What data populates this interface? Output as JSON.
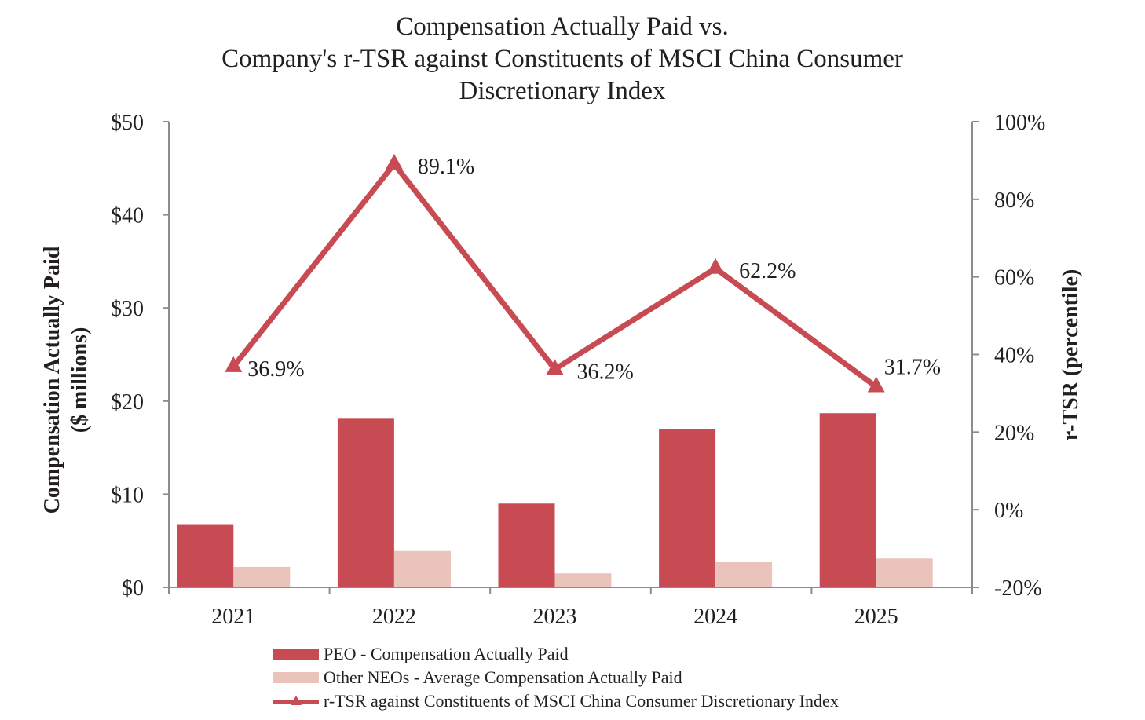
{
  "chart_data": {
    "type": "bar",
    "title": [
      "Compensation Actually Paid vs.",
      "Company's r-TSR against Constituents of MSCI China Consumer",
      "Discretionary Index"
    ],
    "categories": [
      "2021",
      "2022",
      "2023",
      "2024",
      "2025"
    ],
    "ylabel_left": [
      "Compensation Actually Paid",
      "($ millions)"
    ],
    "ylabel_right": "r-TSR (percentile)",
    "ylim_left": [
      0,
      50
    ],
    "ylim_right": [
      -20,
      100
    ],
    "yticks_left": [
      "$0",
      "$10",
      "$20",
      "$30",
      "$40",
      "$50"
    ],
    "yticks_right": [
      "-20%",
      "0%",
      "20%",
      "40%",
      "60%",
      "80%",
      "100%"
    ],
    "series": [
      {
        "name": "PEO - Compensation Actually Paid",
        "type": "bar",
        "axis": "left",
        "values": [
          6.7,
          18.1,
          9.0,
          17.0,
          18.7
        ],
        "color": "#c84b53"
      },
      {
        "name": "Other NEOs - Average Compensation Actually Paid",
        "type": "bar",
        "axis": "left",
        "values": [
          2.2,
          3.9,
          1.5,
          2.7,
          3.1
        ],
        "color": "#ebc3bb"
      },
      {
        "name": "r-TSR against Constituents of MSCI China Consumer Discretionary Index",
        "type": "line",
        "axis": "right",
        "values": [
          36.9,
          89.1,
          36.2,
          62.2,
          31.7
        ],
        "labels": [
          "36.9%",
          "89.1%",
          "36.2%",
          "62.2%",
          "31.7%"
        ],
        "color": "#c84b53"
      }
    ],
    "axis_color": "#8c8c8c",
    "text_color": "#231f20",
    "legend_position": "bottom"
  }
}
